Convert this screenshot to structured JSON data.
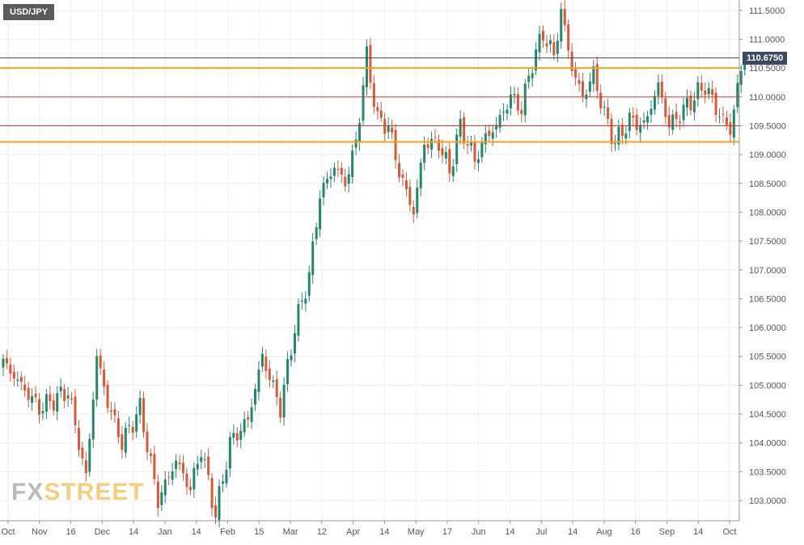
{
  "symbol": "USD/JPY",
  "current_price": "110.6750",
  "watermark": {
    "part1": "FX",
    "part2": "STREET"
  },
  "colors": {
    "up": "#26866c",
    "down": "#d6593a",
    "support_resistance": "#f3a21b",
    "level": "#d0382b",
    "price_line": "#3b4a5e",
    "grid": "#eeeeee",
    "axis_text": "#555555"
  },
  "chart_data": {
    "type": "candlestick",
    "title": "USD/JPY",
    "ylim": [
      102.65,
      111.68
    ],
    "y_ticks": [
      "103.0000",
      "103.5000",
      "104.0000",
      "104.5000",
      "105.0000",
      "105.5000",
      "106.0000",
      "106.5000",
      "107.0000",
      "107.5000",
      "108.0000",
      "108.5000",
      "109.0000",
      "109.5000",
      "110.0000",
      "110.5000",
      "111.0000",
      "111.5000"
    ],
    "x_ticks": [
      "Oct",
      "Nov",
      "16",
      "Dec",
      "14",
      "Jan",
      "14",
      "Feb",
      "15",
      "Mar",
      "12",
      "Apr",
      "14",
      "May",
      "17",
      "Jun",
      "14",
      "Jul",
      "14",
      "Aug",
      "16",
      "Sep",
      "14",
      "Oct"
    ],
    "horizontal_levels": [
      {
        "value": 110.5,
        "kind": "support_resistance"
      },
      {
        "value": 109.22,
        "kind": "support_resistance"
      },
      {
        "value": 110.0,
        "kind": "level"
      },
      {
        "value": 109.5,
        "kind": "level"
      },
      {
        "value": 110.675,
        "kind": "price_line"
      }
    ],
    "close_path": [
      [
        0,
        105.4
      ],
      [
        10,
        104.6
      ],
      [
        18,
        104.9
      ],
      [
        23,
        103.4
      ],
      [
        26,
        105.5
      ],
      [
        29,
        104.7
      ],
      [
        33,
        104.0
      ],
      [
        38,
        104.6
      ],
      [
        43,
        103.0
      ],
      [
        48,
        103.7
      ],
      [
        52,
        103.2
      ],
      [
        55,
        103.9
      ],
      [
        59,
        102.75
      ],
      [
        63,
        104.0
      ],
      [
        68,
        104.4
      ],
      [
        72,
        105.5
      ],
      [
        77,
        104.6
      ],
      [
        81,
        106.0
      ],
      [
        85,
        106.9
      ],
      [
        88,
        108.3
      ],
      [
        92,
        108.8
      ],
      [
        95,
        108.5
      ],
      [
        98,
        109.2
      ],
      [
        101,
        110.7
      ],
      [
        104,
        109.6
      ],
      [
        107,
        109.5
      ],
      [
        110,
        108.7
      ],
      [
        114,
        108.0
      ],
      [
        117,
        109.2
      ],
      [
        121,
        109.2
      ],
      [
        124,
        108.7
      ],
      [
        127,
        109.5
      ],
      [
        131,
        108.9
      ],
      [
        134,
        109.3
      ],
      [
        137,
        109.5
      ],
      [
        141,
        110.0
      ],
      [
        144,
        109.8
      ],
      [
        147,
        110.6
      ],
      [
        150,
        111.1
      ],
      [
        153,
        110.7
      ],
      [
        155,
        111.5
      ],
      [
        158,
        110.5
      ],
      [
        161,
        110.0
      ],
      [
        164,
        110.4
      ],
      [
        167,
        109.7
      ],
      [
        170,
        109.2
      ],
      [
        174,
        109.6
      ],
      [
        178,
        109.5
      ],
      [
        182,
        110.2
      ],
      [
        185,
        109.5
      ],
      [
        188,
        109.7
      ],
      [
        192,
        110.0
      ],
      [
        195,
        110.2
      ],
      [
        198,
        109.8
      ],
      [
        202,
        109.4
      ],
      [
        204,
        110.2
      ],
      [
        206,
        110.6
      ]
    ]
  }
}
